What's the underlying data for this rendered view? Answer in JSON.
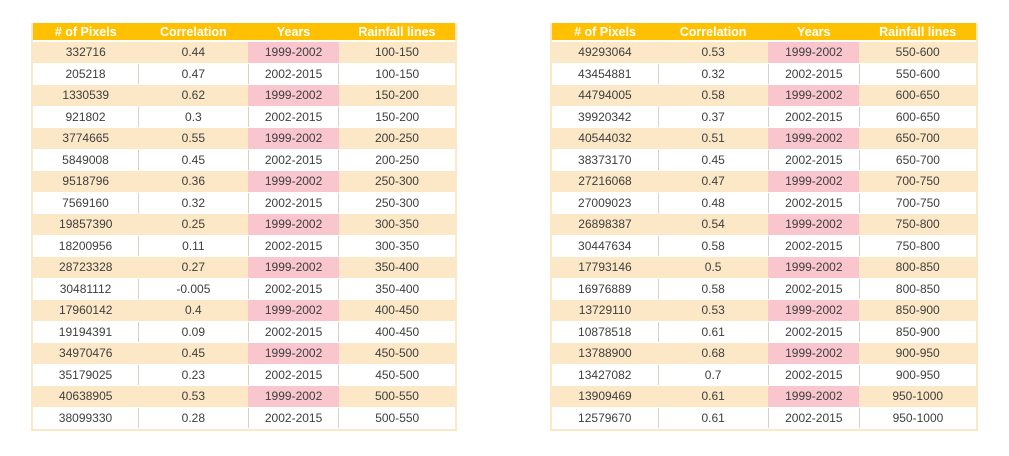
{
  "page": {
    "background_color": "#ffffff",
    "description": "Two side-by-side data tables relating pixel counts and correlations to rainfall line ranges for two year periods"
  },
  "colors": {
    "header_bg": "#FFC000",
    "header_text": "#ffffff",
    "row_cream_bg": "#FCE8C6",
    "row_white_bg": "#ffffff",
    "highlight_bg": "#F9C6CD",
    "highlight_text": "#A83B44",
    "body_text": "#3E3E3E",
    "white_row_divider": "#D7D2C5"
  },
  "highlight_rule": {
    "column_index": 2,
    "value": "1999-2002"
  },
  "tables": [
    {
      "id": "left-table",
      "columns": [
        "# of Pixels",
        "Correlation",
        "Years",
        "Rainfall lines"
      ],
      "rows": [
        [
          "332716",
          "0.44",
          "1999-2002",
          "100-150"
        ],
        [
          "205218",
          "0.47",
          "2002-2015",
          "100-150"
        ],
        [
          "1330539",
          "0.62",
          "1999-2002",
          "150-200"
        ],
        [
          "921802",
          "0.3",
          "2002-2015",
          "150-200"
        ],
        [
          "3774665",
          "0.55",
          "1999-2002",
          "200-250"
        ],
        [
          "5849008",
          "0.45",
          "2002-2015",
          "200-250"
        ],
        [
          "9518796",
          "0.36",
          "1999-2002",
          "250-300"
        ],
        [
          "7569160",
          "0.32",
          "2002-2015",
          "250-300"
        ],
        [
          "19857390",
          "0.25",
          "1999-2002",
          "300-350"
        ],
        [
          "18200956",
          "0.11",
          "2002-2015",
          "300-350"
        ],
        [
          "28723328",
          "0.27",
          "1999-2002",
          "350-400"
        ],
        [
          "30481112",
          "-0.005",
          "2002-2015",
          "350-400"
        ],
        [
          "17960142",
          "0.4",
          "1999-2002",
          "400-450"
        ],
        [
          "19194391",
          "0.09",
          "2002-2015",
          "400-450"
        ],
        [
          "34970476",
          "0.45",
          "1999-2002",
          "450-500"
        ],
        [
          "35179025",
          "0.23",
          "2002-2015",
          "450-500"
        ],
        [
          "40638905",
          "0.53",
          "1999-2002",
          "500-550"
        ],
        [
          "38099330",
          "0.28",
          "2002-2015",
          "500-550"
        ]
      ]
    },
    {
      "id": "right-table",
      "columns": [
        "# of Pixels",
        "Correlation",
        "Years",
        "Rainfall lines"
      ],
      "rows": [
        [
          "49293064",
          "0.53",
          "1999-2002",
          "550-600"
        ],
        [
          "43454881",
          "0.32",
          "2002-2015",
          "550-600"
        ],
        [
          "44794005",
          "0.58",
          "1999-2002",
          "600-650"
        ],
        [
          "39920342",
          "0.37",
          "2002-2015",
          "600-650"
        ],
        [
          "40544032",
          "0.51",
          "1999-2002",
          "650-700"
        ],
        [
          "38373170",
          "0.45",
          "2002-2015",
          "650-700"
        ],
        [
          "27216068",
          "0.47",
          "1999-2002",
          "700-750"
        ],
        [
          "27009023",
          "0.48",
          "2002-2015",
          "700-750"
        ],
        [
          "26898387",
          "0.54",
          "1999-2002",
          "750-800"
        ],
        [
          "30447634",
          "0.58",
          "2002-2015",
          "750-800"
        ],
        [
          "17793146",
          "0.5",
          "1999-2002",
          "800-850"
        ],
        [
          "16976889",
          "0.58",
          "2002-2015",
          "800-850"
        ],
        [
          "13729110",
          "0.53",
          "1999-2002",
          "850-900"
        ],
        [
          "10878518",
          "0.61",
          "2002-2015",
          "850-900"
        ],
        [
          "13788900",
          "0.68",
          "1999-2002",
          "900-950"
        ],
        [
          "13427082",
          "0.7",
          "2002-2015",
          "900-950"
        ],
        [
          "13909469",
          "0.61",
          "1999-2002",
          "950-1000"
        ],
        [
          "12579670",
          "0.61",
          "2002-2015",
          "950-1000"
        ]
      ]
    }
  ]
}
